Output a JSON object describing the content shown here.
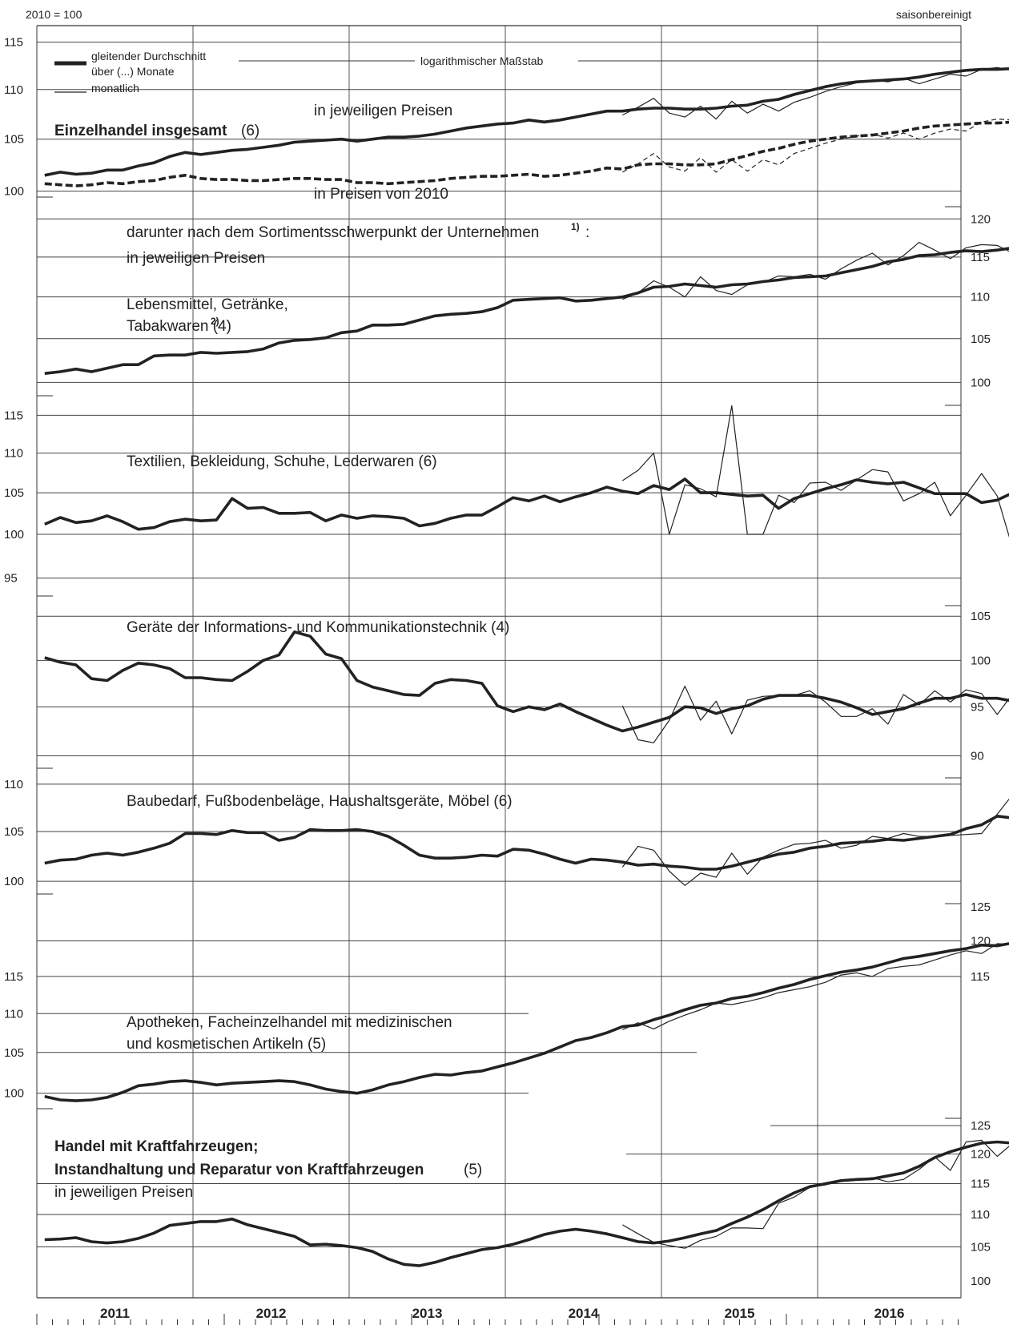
{
  "header": {
    "index_base": "2010 = 100",
    "adjustment": "saisonbereinigt"
  },
  "legend": {
    "moving_average_line1": "gleitender Durchschnitt",
    "moving_average_line2": "über (...) Monate",
    "monthly": "monatlich",
    "scale_note": "logarithmischer Maßstab"
  },
  "years": [
    "2011",
    "2012",
    "2013",
    "2014",
    "2015",
    "2016"
  ],
  "chart_data": [
    {
      "id": "insgesamt",
      "type": "line",
      "title": "Einzelhandel insgesamt",
      "title_suffix": " (6)",
      "annotations": [
        "in jeweiligen Preisen",
        "in Preisen von 2010"
      ],
      "y_ticks": [
        100,
        105,
        110,
        115
      ],
      "ylim": [
        99.0,
        116.8
      ],
      "y_axis_side": "left",
      "monthly_start": 37,
      "series": [
        {
          "style": "moving-average",
          "values": [
            101.5,
            101.8,
            101.6,
            101.7,
            102.0,
            102.0,
            102.4,
            102.7,
            103.3,
            103.7,
            103.5,
            103.7,
            103.9,
            104.0,
            104.2,
            104.4,
            104.7,
            104.8,
            104.9,
            105.0,
            104.8,
            105.0,
            105.2,
            105.2,
            105.3,
            105.5,
            105.8,
            106.1,
            106.3,
            106.5,
            106.6,
            106.9,
            106.7,
            106.9,
            107.2,
            107.5,
            107.8,
            107.8,
            108.0,
            108.1,
            108.1,
            108.0,
            108.0,
            108.1,
            108.3,
            108.4,
            108.8,
            109.0,
            109.5,
            109.9,
            110.3,
            110.6,
            110.8,
            110.9,
            111.0,
            111.1,
            111.3,
            111.6,
            111.8,
            112.0,
            112.1,
            112.1,
            112.2,
            112.2,
            112.3
          ]
        },
        {
          "style": "monthly",
          "values": [
            107.4,
            108.2,
            109.1,
            107.6,
            107.2,
            108.3,
            107.0,
            108.8,
            107.6,
            108.5,
            107.8,
            108.7,
            109.2,
            109.8,
            110.3,
            110.7,
            111.0,
            110.8,
            111.2,
            110.6,
            111.1,
            111.6,
            111.4,
            112.1,
            112.3,
            112.0,
            112.1,
            111.6,
            111.9,
            112.5,
            112.5,
            113.1
          ]
        },
        {
          "style": "moving-average-dashed",
          "values": [
            100.7,
            100.6,
            100.5,
            100.6,
            100.8,
            100.7,
            100.9,
            101.0,
            101.3,
            101.5,
            101.2,
            101.1,
            101.1,
            101.0,
            101.0,
            101.1,
            101.2,
            101.2,
            101.1,
            101.1,
            100.8,
            100.8,
            100.7,
            100.8,
            100.9,
            101.0,
            101.2,
            101.3,
            101.4,
            101.4,
            101.5,
            101.6,
            101.4,
            101.5,
            101.7,
            101.9,
            102.2,
            102.1,
            102.5,
            102.6,
            102.6,
            102.5,
            102.5,
            102.6,
            103.0,
            103.4,
            103.8,
            104.1,
            104.5,
            104.8,
            105.0,
            105.2,
            105.3,
            105.4,
            105.6,
            105.8,
            106.1,
            106.3,
            106.4,
            106.5,
            106.6,
            106.6,
            106.7,
            106.7
          ]
        },
        {
          "style": "monthly-dashed",
          "values": [
            101.8,
            102.6,
            103.6,
            102.3,
            101.9,
            103.2,
            101.8,
            103.0,
            101.9,
            103.0,
            102.5,
            103.6,
            104.1,
            104.6,
            105.0,
            105.3,
            105.5,
            105.1,
            105.6,
            105.0,
            105.6,
            106.0,
            105.8,
            106.7,
            107.0,
            106.9,
            106.7,
            106.0,
            106.4,
            107.0,
            107.0,
            107.5
          ]
        }
      ]
    },
    {
      "id": "lebensmittel",
      "type": "line",
      "title": "Lebensmittel, Getränke,",
      "title_line2": "Tabakwaren (4)",
      "title_sup": " 2)",
      "section_title": "darunter nach dem Sortimentsschwerpunkt der Unternehmen",
      "section_title_sup": "1)",
      "section_title_end": ":",
      "subtitle": "in jeweiligen Preisen",
      "y_ticks": [
        100,
        105,
        110,
        115,
        120
      ],
      "ylim": [
        98.0,
        122.3
      ],
      "y_axis_side": "right",
      "monthly_start": 37,
      "series": [
        {
          "style": "moving-average",
          "values": [
            101.0,
            101.2,
            101.5,
            101.2,
            101.6,
            102.0,
            102.0,
            103.0,
            103.1,
            103.1,
            103.4,
            103.3,
            103.4,
            103.5,
            103.8,
            104.5,
            104.8,
            104.9,
            105.1,
            105.7,
            105.9,
            106.6,
            106.6,
            106.7,
            107.2,
            107.7,
            107.9,
            108.0,
            108.2,
            108.7,
            109.6,
            109.7,
            109.8,
            109.9,
            109.5,
            109.6,
            109.8,
            110.0,
            110.5,
            111.2,
            111.3,
            111.6,
            111.4,
            111.2,
            111.5,
            111.6,
            111.9,
            112.1,
            112.4,
            112.5,
            112.6,
            113.0,
            113.4,
            113.8,
            114.4,
            114.7,
            115.2,
            115.3,
            115.6,
            115.8,
            115.7,
            115.9,
            116.2,
            115.8,
            115.4,
            115.3,
            115.2,
            115.1,
            116.0
          ]
        },
        {
          "style": "monthly",
          "values": [
            109.7,
            110.5,
            112.0,
            111.2,
            110.0,
            112.5,
            110.8,
            110.3,
            111.5,
            111.8,
            112.6,
            112.5,
            112.8,
            112.2,
            113.5,
            114.6,
            115.5,
            114.0,
            115.2,
            116.9,
            115.9,
            114.8,
            116.2,
            116.6,
            116.5,
            115.5,
            113.6,
            114.3,
            116.6,
            115.7,
            118.3
          ]
        }
      ]
    },
    {
      "id": "textilien",
      "type": "line",
      "title": "Textilien, Bekleidung, Schuhe, Lederwaren (6)",
      "y_ticks": [
        95,
        100,
        105,
        110,
        115
      ],
      "ylim": [
        92.5,
        117.0
      ],
      "y_axis_side": "left",
      "monthly_start": 37,
      "series": [
        {
          "style": "moving-average",
          "values": [
            101.2,
            102.0,
            101.4,
            101.6,
            102.2,
            101.5,
            100.6,
            100.8,
            101.5,
            101.8,
            101.6,
            101.7,
            104.3,
            103.1,
            103.2,
            102.5,
            102.5,
            102.6,
            101.6,
            102.3,
            101.9,
            102.2,
            102.1,
            101.9,
            101.0,
            101.3,
            101.9,
            102.3,
            102.3,
            103.3,
            104.4,
            104.0,
            104.6,
            103.9,
            104.5,
            105.0,
            105.7,
            105.2,
            104.9,
            105.9,
            105.4,
            106.7,
            105.0,
            105.0,
            104.8,
            104.6,
            104.7,
            103.1,
            104.3,
            104.9,
            105.5,
            106.0,
            106.6,
            106.3,
            106.1,
            106.3,
            105.6,
            104.9,
            104.9,
            104.9,
            103.8,
            104.1,
            105.0,
            105.3,
            105.4
          ]
        },
        {
          "style": "monthly",
          "values": [
            106.5,
            107.8,
            110.0,
            100.0,
            106.0,
            105.5,
            104.5,
            116.3,
            100.0,
            100.0,
            104.7,
            103.8,
            106.2,
            106.3,
            105.3,
            106.6,
            107.9,
            107.6,
            104.0,
            104.9,
            106.3,
            102.2,
            104.7,
            107.4,
            104.6,
            98.3,
            108.0,
            107.8,
            106.6,
            108.2
          ]
        }
      ]
    },
    {
      "id": "ikt",
      "type": "line",
      "title": "Geräte der Informations- und Kommunikationstechnik (4)",
      "y_ticks": [
        90,
        95,
        100,
        105
      ],
      "ylim": [
        88.3,
        106.8
      ],
      "y_axis_side": "right",
      "monthly_start": 37,
      "series": [
        {
          "style": "moving-average",
          "values": [
            100.3,
            99.8,
            99.5,
            98.0,
            97.8,
            98.9,
            99.7,
            99.5,
            99.1,
            98.1,
            98.1,
            97.9,
            97.8,
            98.8,
            100.0,
            100.6,
            103.2,
            102.7,
            100.7,
            100.2,
            97.8,
            97.1,
            96.7,
            96.3,
            96.2,
            97.5,
            97.9,
            97.8,
            97.5,
            95.1,
            94.5,
            95.0,
            94.7,
            95.3,
            94.5,
            93.8,
            93.1,
            92.5,
            92.9,
            93.4,
            93.9,
            95.0,
            94.9,
            94.3,
            94.8,
            95.1,
            95.8,
            96.2,
            96.2,
            96.2,
            95.9,
            95.5,
            94.9,
            94.2,
            94.5,
            94.8,
            95.4,
            95.9,
            95.9,
            96.3,
            95.9,
            95.9,
            95.6,
            95.1,
            95.2,
            95.1
          ]
        },
        {
          "style": "monthly",
          "values": [
            95.1,
            91.6,
            91.3,
            93.6,
            97.2,
            93.6,
            95.6,
            92.2,
            95.7,
            96.1,
            96.2,
            96.2,
            96.7,
            95.5,
            94.0,
            94.0,
            94.8,
            93.2,
            96.3,
            95.2,
            96.7,
            95.5,
            96.8,
            96.4,
            94.2,
            96.4,
            96.5,
            94.7,
            92.8,
            96.7,
            95.7
          ]
        }
      ]
    },
    {
      "id": "baubedarf",
      "type": "line",
      "title": "Baubedarf, Fußbodenbeläge, Haushaltsgeräte, Möbel (6)",
      "y_ticks": [
        100,
        105,
        110
      ],
      "ylim": [
        98.3,
        111.2
      ],
      "y_axis_side": "left",
      "monthly_start": 37,
      "series": [
        {
          "style": "moving-average",
          "values": [
            101.8,
            102.1,
            102.2,
            102.6,
            102.8,
            102.6,
            102.9,
            103.3,
            103.8,
            104.8,
            104.8,
            104.7,
            105.1,
            104.9,
            104.9,
            104.1,
            104.4,
            105.2,
            105.1,
            105.1,
            105.2,
            105.0,
            104.5,
            103.6,
            102.6,
            102.3,
            102.3,
            102.4,
            102.6,
            102.5,
            103.2,
            103.1,
            102.7,
            102.2,
            101.8,
            102.2,
            102.1,
            101.9,
            101.6,
            101.7,
            101.5,
            101.4,
            101.2,
            101.2,
            101.5,
            101.9,
            102.3,
            102.7,
            102.9,
            103.3,
            103.5,
            103.8,
            103.9,
            104.0,
            104.2,
            104.1,
            104.3,
            104.5,
            104.7,
            105.3,
            105.7,
            106.6,
            106.4,
            106.4,
            106.6,
            106.0,
            106.2
          ]
        },
        {
          "style": "monthly",
          "values": [
            101.4,
            103.5,
            103.1,
            101.0,
            99.6,
            100.8,
            100.4,
            102.8,
            100.7,
            102.4,
            103.1,
            103.7,
            103.8,
            104.1,
            103.3,
            103.6,
            104.5,
            104.3,
            104.8,
            104.5,
            104.5,
            104.6,
            104.7,
            104.8,
            106.8,
            108.9,
            106.9,
            107.8,
            103.1,
            105.7,
            106.7,
            106.0,
            108.5
          ]
        }
      ]
    },
    {
      "id": "apotheken",
      "type": "line",
      "title": "Apotheken, Facheinzelhandel mit medizinischen",
      "title_line2": "und kosmetischen Artikeln (5)",
      "y_ticks": [
        100,
        105,
        110,
        115,
        120,
        125
      ],
      "y_ticks_left": [
        100,
        105,
        110,
        115
      ],
      "y_ticks_right": [
        115,
        120,
        125
      ],
      "ylim": [
        97.6,
        126.2
      ],
      "monthly_start": 37,
      "series": [
        {
          "style": "moving-average",
          "values": [
            99.6,
            99.2,
            99.1,
            99.2,
            99.5,
            100.1,
            100.9,
            101.1,
            101.4,
            101.5,
            101.3,
            101.0,
            101.2,
            101.3,
            101.4,
            101.5,
            101.4,
            101.0,
            100.5,
            100.2,
            100.0,
            100.4,
            101.0,
            101.4,
            101.9,
            102.3,
            102.2,
            102.5,
            102.7,
            103.2,
            103.7,
            104.3,
            104.9,
            105.7,
            106.5,
            106.9,
            107.5,
            108.3,
            108.5,
            109.2,
            109.8,
            110.5,
            111.1,
            111.4,
            112.0,
            112.3,
            112.8,
            113.4,
            113.9,
            114.6,
            115.1,
            115.6,
            115.9,
            116.3,
            116.9,
            117.5,
            117.8,
            118.2,
            118.6,
            118.9,
            119.4,
            119.3,
            119.7,
            120.0,
            120.1
          ]
        },
        {
          "style": "monthly",
          "values": [
            107.9,
            108.8,
            108.0,
            109.0,
            109.8,
            110.5,
            111.4,
            111.2,
            111.6,
            112.1,
            112.8,
            113.2,
            113.6,
            114.2,
            115.2,
            115.5,
            115.0,
            116.1,
            116.4,
            116.6,
            117.3,
            118.0,
            118.6,
            118.2,
            119.6,
            119.5,
            120.0,
            119.1,
            120.7,
            120.4,
            121.1
          ]
        }
      ]
    },
    {
      "id": "kfz",
      "type": "line",
      "title": "Handel mit Kraftfahrzeugen;",
      "title_line2": "Instandhaltung und Reparatur von Kraftfahrzeugen",
      "title_suffix": " (5)",
      "subtitle": "in jeweiligen Preisen",
      "y_ticks": [
        100,
        105,
        110,
        115,
        120,
        125
      ],
      "ylim": [
        97.6,
        127.2
      ],
      "y_axis_side": "right",
      "monthly_start": 37,
      "series": [
        {
          "style": "moving-average",
          "values": [
            106.1,
            106.2,
            106.4,
            105.8,
            105.6,
            105.8,
            106.3,
            107.1,
            108.3,
            108.6,
            108.9,
            108.9,
            109.3,
            108.4,
            107.8,
            107.2,
            106.6,
            105.3,
            105.4,
            105.2,
            104.9,
            104.3,
            103.2,
            102.4,
            102.2,
            102.7,
            103.4,
            104.0,
            104.6,
            104.9,
            105.4,
            106.1,
            106.9,
            107.4,
            107.7,
            107.4,
            107.0,
            106.4,
            105.8,
            105.6,
            105.9,
            106.4,
            107.0,
            107.5,
            108.6,
            109.6,
            110.8,
            112.2,
            113.5,
            114.5,
            115.0,
            115.5,
            115.7,
            115.8,
            116.3,
            116.8,
            117.9,
            119.4,
            120.4,
            121.2,
            121.9,
            122.1,
            121.9
          ]
        },
        {
          "style": "monthly",
          "values": [
            108.4,
            107.0,
            105.7,
            105.2,
            104.8,
            106.0,
            106.6,
            107.9,
            107.9,
            107.8,
            111.8,
            112.8,
            114.4,
            114.8,
            115.4,
            115.6,
            116.0,
            115.3,
            115.7,
            117.4,
            119.5,
            117.2,
            122.1,
            122.4,
            119.6,
            121.9,
            120.3,
            122.3
          ]
        }
      ]
    }
  ]
}
